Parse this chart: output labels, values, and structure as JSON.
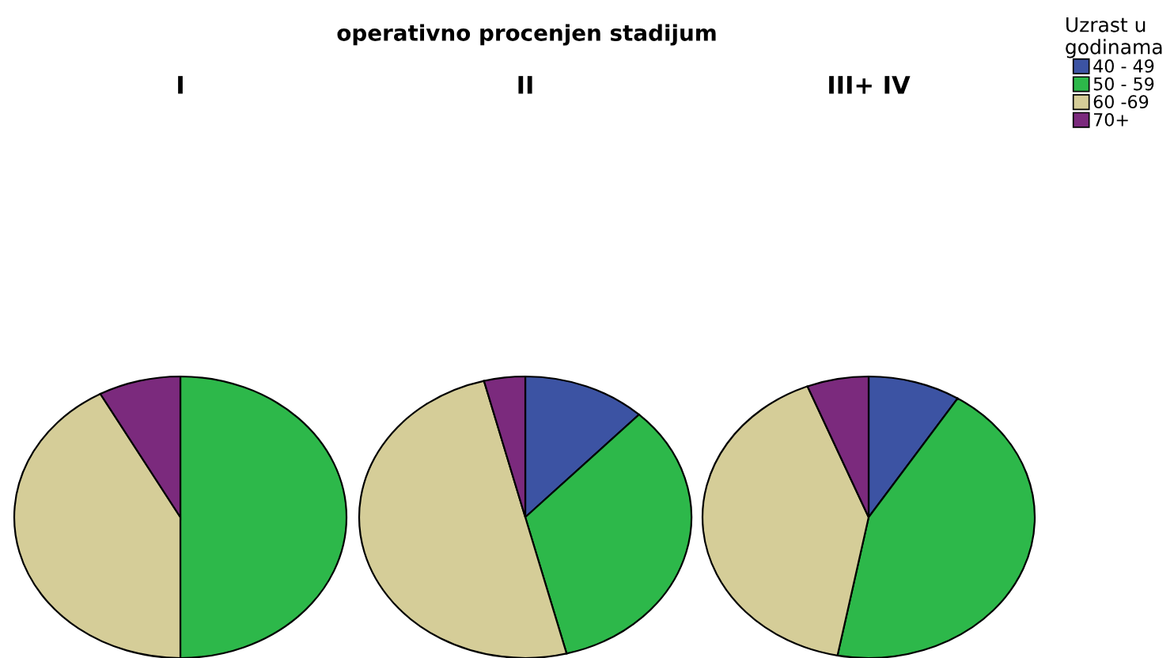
{
  "chart_data": [
    {
      "type": "pie",
      "subtitle": "I",
      "categories": [
        null,
        null,
        null,
        null
      ],
      "values": [
        0,
        50,
        42,
        8
      ],
      "colors": [
        "#3c53a3",
        "#2db84a",
        "#d5cd98",
        "#7b2a7d"
      ]
    },
    {
      "type": "pie",
      "title": "operativno procenjen stadijum",
      "subtitle": "II",
      "categories": [
        null,
        null,
        null,
        null
      ],
      "values": [
        12,
        34,
        50,
        4
      ],
      "colors": [
        "#3c53a3",
        "#2db84a",
        "#d5cd98",
        "#7b2a7d"
      ]
    },
    {
      "type": "pie",
      "subtitle": "III+ IV",
      "legend_title": "Uzrast u godinama",
      "legend": "top right",
      "categories": [
        "40 - 49",
        "50 - 59",
        "60 -69",
        "70+"
      ],
      "values": [
        9,
        44,
        41,
        6
      ],
      "colors": [
        "#3c53a3",
        "#2db84a",
        "#d5cd98",
        "#7b2a7d"
      ]
    }
  ]
}
